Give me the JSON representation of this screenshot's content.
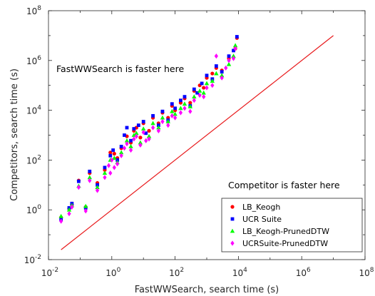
{
  "chart_data": {
    "type": "scatter",
    "xlabel": "FastWWSearch, search time (s)",
    "ylabel": "Competitors, search time (s)",
    "x_scale": "log",
    "y_scale": "log",
    "xlim": [
      0.01,
      100000000
    ],
    "ylim": [
      0.01,
      100000000
    ],
    "x_ticks": [
      {
        "base": "10",
        "exp": "-2"
      },
      {
        "base": "10",
        "exp": "0"
      },
      {
        "base": "10",
        "exp": "2"
      },
      {
        "base": "10",
        "exp": "4"
      },
      {
        "base": "10",
        "exp": "6"
      },
      {
        "base": "10",
        "exp": "8"
      }
    ],
    "y_ticks": [
      {
        "base": "10",
        "exp": "-2"
      },
      {
        "base": "10",
        "exp": "0"
      },
      {
        "base": "10",
        "exp": "2"
      },
      {
        "base": "10",
        "exp": "4"
      },
      {
        "base": "10",
        "exp": "6"
      },
      {
        "base": "10",
        "exp": "8"
      }
    ],
    "annotations": {
      "upper": "FastWWSearch is faster here",
      "lower": "Competitor is faster here"
    },
    "reference_line": {
      "name": "y = x",
      "color": "#e8191b",
      "x": [
        0.025,
        10000000
      ],
      "y": [
        0.025,
        10000000
      ]
    },
    "legend_position": "bottom-right",
    "series": [
      {
        "name": "LB_Keogh",
        "marker": "circle",
        "color": "#ff0000",
        "points": [
          [
            0.025,
            0.5
          ],
          [
            0.045,
            1.1
          ],
          [
            0.055,
            1.6
          ],
          [
            0.09,
            15
          ],
          [
            0.15,
            1.3
          ],
          [
            0.2,
            30
          ],
          [
            0.35,
            12
          ],
          [
            0.6,
            40
          ],
          [
            0.9,
            200
          ],
          [
            1.2,
            180
          ],
          [
            1.5,
            120
          ],
          [
            2,
            300
          ],
          [
            3,
            900
          ],
          [
            4,
            500
          ],
          [
            5,
            1500
          ],
          [
            6,
            2000
          ],
          [
            8,
            800
          ],
          [
            10,
            3000
          ],
          [
            15,
            1500
          ],
          [
            20,
            5000
          ],
          [
            30,
            3000
          ],
          [
            40,
            8000
          ],
          [
            60,
            5000
          ],
          [
            80,
            15000
          ],
          [
            100,
            10000
          ],
          [
            150,
            20000
          ],
          [
            200,
            30000
          ],
          [
            300,
            20000
          ],
          [
            400,
            60000
          ],
          [
            600,
            100000
          ],
          [
            800,
            80000
          ],
          [
            1000,
            200000
          ],
          [
            1500,
            300000
          ],
          [
            2000,
            500000
          ],
          [
            3000,
            400000
          ],
          [
            5000,
            1200000
          ],
          [
            8000,
            3000000
          ],
          [
            9000,
            8000000
          ]
        ]
      },
      {
        "name": "UCR Suite",
        "marker": "square",
        "color": "#0000ff",
        "points": [
          [
            0.025,
            0.4
          ],
          [
            0.045,
            1.2
          ],
          [
            0.055,
            1.8
          ],
          [
            0.09,
            14
          ],
          [
            0.15,
            1.2
          ],
          [
            0.2,
            35
          ],
          [
            0.35,
            10
          ],
          [
            0.6,
            50
          ],
          [
            0.9,
            150
          ],
          [
            1.1,
            250
          ],
          [
            1.5,
            100
          ],
          [
            2,
            350
          ],
          [
            2.5,
            1000
          ],
          [
            3,
            2000
          ],
          [
            4,
            600
          ],
          [
            5,
            1800
          ],
          [
            7,
            2500
          ],
          [
            10,
            3500
          ],
          [
            12,
            1200
          ],
          [
            20,
            6000
          ],
          [
            30,
            2500
          ],
          [
            40,
            9000
          ],
          [
            60,
            4000
          ],
          [
            80,
            18000
          ],
          [
            100,
            12000
          ],
          [
            150,
            25000
          ],
          [
            200,
            35000
          ],
          [
            300,
            15000
          ],
          [
            400,
            70000
          ],
          [
            500,
            50000
          ],
          [
            700,
            120000
          ],
          [
            1000,
            250000
          ],
          [
            1500,
            180000
          ],
          [
            2000,
            600000
          ],
          [
            3000,
            350000
          ],
          [
            5000,
            1500000
          ],
          [
            7000,
            2500000
          ],
          [
            9000,
            9000000
          ]
        ]
      },
      {
        "name": "LB_Keogh-PrunedDTW",
        "marker": "triangle",
        "color": "#00ff00",
        "points": [
          [
            0.025,
            0.55
          ],
          [
            0.045,
            1.0
          ],
          [
            0.055,
            1.5
          ],
          [
            0.09,
            9
          ],
          [
            0.15,
            1.4
          ],
          [
            0.2,
            20
          ],
          [
            0.35,
            8
          ],
          [
            0.6,
            30
          ],
          [
            0.9,
            100
          ],
          [
            1.2,
            120
          ],
          [
            1.5,
            80
          ],
          [
            2,
            200
          ],
          [
            3,
            600
          ],
          [
            4,
            350
          ],
          [
            5,
            1000
          ],
          [
            6,
            1200
          ],
          [
            8,
            500
          ],
          [
            10,
            1800
          ],
          [
            15,
            900
          ],
          [
            20,
            3000
          ],
          [
            30,
            2000
          ],
          [
            40,
            5000
          ],
          [
            60,
            3500
          ],
          [
            80,
            9000
          ],
          [
            100,
            7000
          ],
          [
            150,
            12000
          ],
          [
            200,
            18000
          ],
          [
            300,
            14000
          ],
          [
            400,
            35000
          ],
          [
            600,
            60000
          ],
          [
            800,
            50000
          ],
          [
            1000,
            120000
          ],
          [
            1500,
            150000
          ],
          [
            2000,
            300000
          ],
          [
            3000,
            250000
          ],
          [
            5000,
            700000
          ],
          [
            7000,
            1500000
          ],
          [
            8000,
            4000000
          ]
        ]
      },
      {
        "name": "UCRSuite-PrunedDTW",
        "marker": "diamond",
        "color": "#ff00ff",
        "points": [
          [
            0.025,
            0.35
          ],
          [
            0.045,
            0.7
          ],
          [
            0.055,
            1.3
          ],
          [
            0.09,
            8
          ],
          [
            0.15,
            0.9
          ],
          [
            0.2,
            15
          ],
          [
            0.35,
            6
          ],
          [
            0.6,
            20
          ],
          [
            0.8,
            60
          ],
          [
            0.9,
            30
          ],
          [
            1,
            100
          ],
          [
            1.2,
            50
          ],
          [
            1.5,
            70
          ],
          [
            2,
            150
          ],
          [
            2.5,
            300
          ],
          [
            3,
            450
          ],
          [
            4,
            250
          ],
          [
            5,
            700
          ],
          [
            6,
            900
          ],
          [
            8,
            400
          ],
          [
            10,
            1300
          ],
          [
            12,
            600
          ],
          [
            15,
            700
          ],
          [
            20,
            2000
          ],
          [
            30,
            1500
          ],
          [
            40,
            3500
          ],
          [
            60,
            2500
          ],
          [
            80,
            6000
          ],
          [
            100,
            5000
          ],
          [
            150,
            8000
          ],
          [
            200,
            12000
          ],
          [
            300,
            9000
          ],
          [
            400,
            25000
          ],
          [
            600,
            40000
          ],
          [
            800,
            35000
          ],
          [
            1000,
            80000
          ],
          [
            1500,
            100000
          ],
          [
            2000,
            1500000
          ],
          [
            3000,
            200000
          ],
          [
            4000,
            500000
          ],
          [
            5000,
            1000000
          ],
          [
            7000,
            1200000
          ],
          [
            8000,
            3000000
          ]
        ]
      }
    ]
  }
}
